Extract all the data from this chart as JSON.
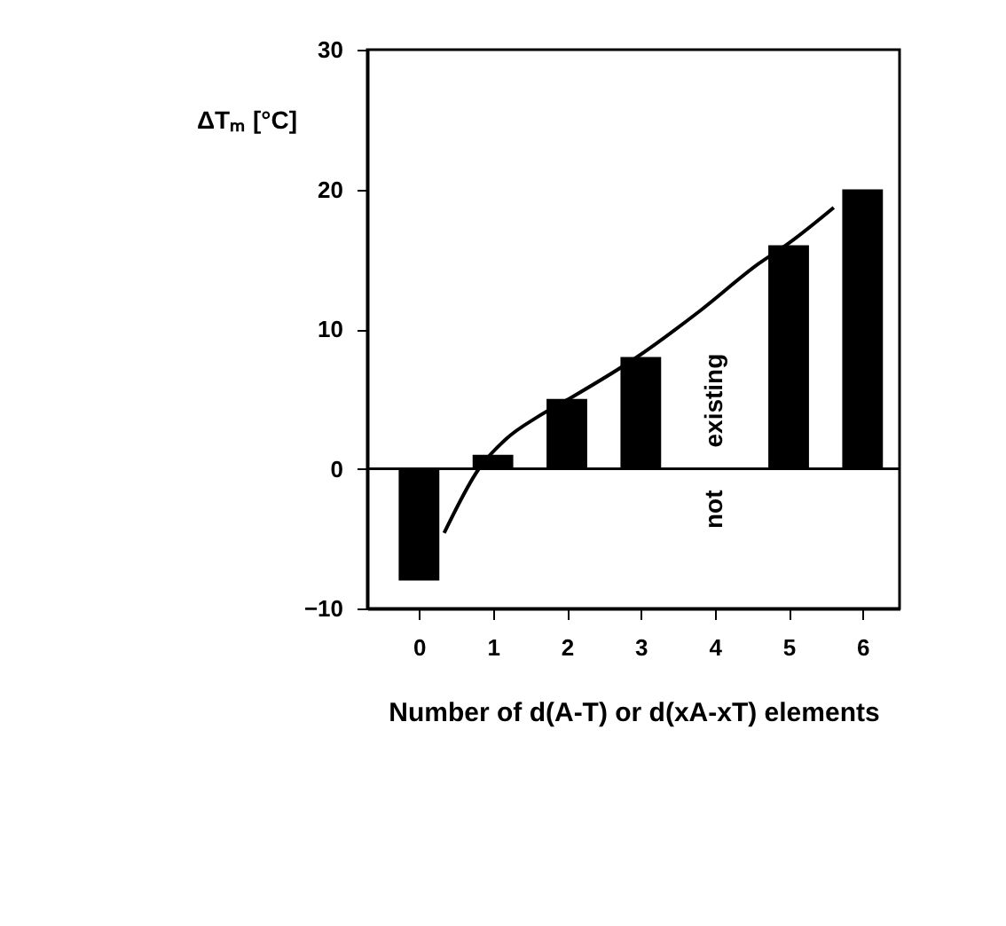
{
  "chart_data": {
    "type": "bar",
    "xlabel": "Number of d(A-T) or d(xA-xT) elements",
    "ylabel": "ΔTₘ [°C]",
    "x": [
      0,
      1,
      2,
      3,
      4,
      5,
      6
    ],
    "series": [
      {
        "color": "#000000",
        "values": [
          -8,
          1,
          5,
          8,
          null,
          16,
          20
        ]
      },
      {
        "type": "line",
        "color": "#000000",
        "x": [
          0.34,
          0.81,
          1.17,
          1.63,
          2.06,
          2.95,
          3.8,
          4.6,
          4.99,
          5.61
        ],
        "values": [
          -4.6,
          0,
          2.1,
          3.8,
          5.1,
          8,
          11.3,
          14.7,
          16.1,
          18.7
        ]
      }
    ],
    "xlim": [
      -0.7,
      6.5
    ],
    "xticks": [
      0,
      1,
      2,
      3,
      4,
      5,
      6
    ],
    "ylim": [
      -10,
      30
    ],
    "yticks": [
      -10,
      0,
      10,
      20,
      30
    ],
    "ref_lines": [
      {
        "axis": "y",
        "value": 0
      }
    ],
    "annotations": [
      "existing",
      "not"
    ],
    "grid": false
  }
}
